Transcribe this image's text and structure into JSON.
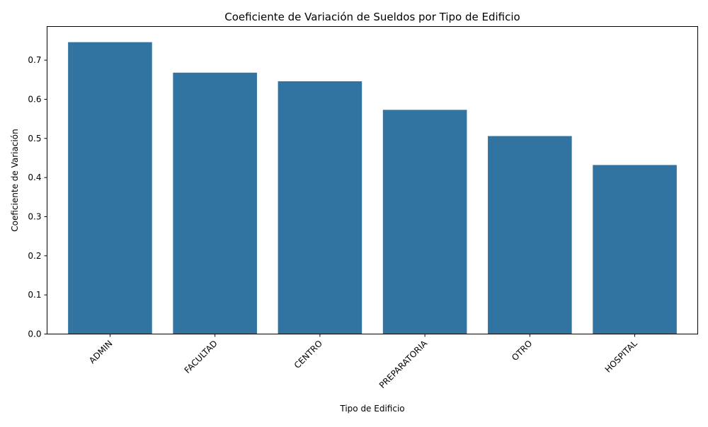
{
  "chart_data": {
    "type": "bar",
    "title": "Coeficiente de Variación de Sueldos por Tipo de Edificio",
    "xlabel": "Tipo de Edificio",
    "ylabel": "Coeficiente de Variación",
    "categories": [
      "ADMIN",
      "FACULTAD",
      "CENTRO",
      "PREPARATORIA",
      "OTRO",
      "HOSPITAL"
    ],
    "values": [
      0.746,
      0.668,
      0.646,
      0.573,
      0.506,
      0.432
    ],
    "ylim": [
      0,
      0.786
    ],
    "yticks": [
      "0.0",
      "0.1",
      "0.2",
      "0.3",
      "0.4",
      "0.5",
      "0.6",
      "0.7"
    ],
    "bar_color": "#3274a1",
    "grid": false,
    "xtick_rotation": 45
  }
}
